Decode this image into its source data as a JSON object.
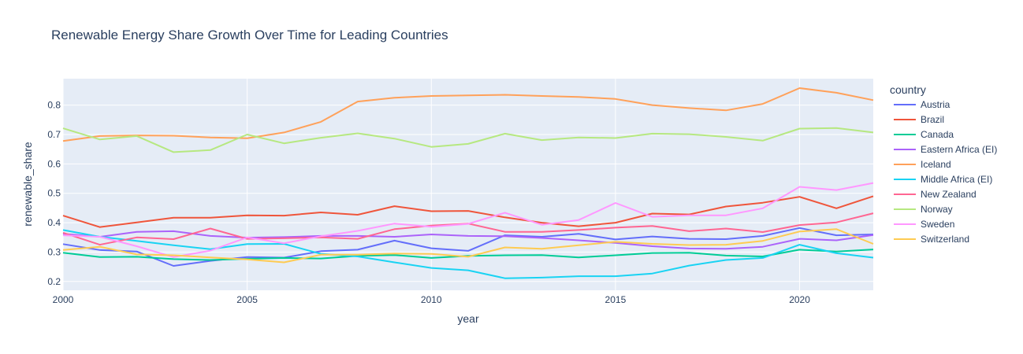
{
  "chart_data": {
    "type": "line",
    "title": "Renewable Energy Share Growth Over Time for Leading Countries",
    "xlabel": "year",
    "ylabel": "renewable_share",
    "legend_title": "country",
    "legend_position": "right",
    "grid": true,
    "xlim": [
      2000,
      2022
    ],
    "ylim": [
      0.17,
      0.89
    ],
    "x_ticks": [
      2000,
      2005,
      2010,
      2015,
      2020
    ],
    "y_ticks": [
      0.2,
      0.3,
      0.4,
      0.5,
      0.6,
      0.7,
      0.8
    ],
    "x": [
      2000,
      2001,
      2002,
      2003,
      2004,
      2005,
      2006,
      2007,
      2008,
      2009,
      2010,
      2011,
      2012,
      2013,
      2014,
      2015,
      2016,
      2017,
      2018,
      2019,
      2020,
      2021,
      2022
    ],
    "series": [
      {
        "name": "Austria",
        "color": "#636efa",
        "values": [
          0.327,
          0.307,
          0.302,
          0.253,
          0.27,
          0.283,
          0.281,
          0.303,
          0.308,
          0.339,
          0.313,
          0.304,
          0.357,
          0.352,
          0.362,
          0.343,
          0.353,
          0.345,
          0.344,
          0.355,
          0.382,
          0.357,
          0.36
        ]
      },
      {
        "name": "Brazil",
        "color": "#ef553b",
        "values": [
          0.424,
          0.385,
          0.401,
          0.417,
          0.417,
          0.425,
          0.424,
          0.435,
          0.427,
          0.456,
          0.439,
          0.44,
          0.418,
          0.4,
          0.388,
          0.4,
          0.431,
          0.428,
          0.455,
          0.468,
          0.488,
          0.449,
          0.49
        ]
      },
      {
        "name": "Canada",
        "color": "#00cc96",
        "values": [
          0.298,
          0.283,
          0.284,
          0.276,
          0.273,
          0.277,
          0.28,
          0.278,
          0.287,
          0.29,
          0.28,
          0.287,
          0.289,
          0.29,
          0.282,
          0.289,
          0.297,
          0.298,
          0.288,
          0.285,
          0.308,
          0.302,
          0.309
        ]
      },
      {
        "name": "Eastern Africa (EI)",
        "color": "#ab63fa",
        "values": [
          0.362,
          0.352,
          0.369,
          0.371,
          0.355,
          0.349,
          0.351,
          0.355,
          0.355,
          0.352,
          0.36,
          0.355,
          0.354,
          0.348,
          0.34,
          0.331,
          0.32,
          0.312,
          0.311,
          0.318,
          0.345,
          0.34,
          0.358
        ]
      },
      {
        "name": "Iceland",
        "color": "#ffa15a",
        "values": [
          0.678,
          0.695,
          0.697,
          0.696,
          0.69,
          0.687,
          0.707,
          0.743,
          0.812,
          0.825,
          0.831,
          0.833,
          0.835,
          0.831,
          0.828,
          0.821,
          0.8,
          0.79,
          0.782,
          0.804,
          0.858,
          0.842,
          0.817
        ]
      },
      {
        "name": "Middle Africa (EI)",
        "color": "#19d3f3",
        "values": [
          0.375,
          0.352,
          0.338,
          0.323,
          0.31,
          0.327,
          0.328,
          0.294,
          0.285,
          0.265,
          0.246,
          0.238,
          0.211,
          0.213,
          0.218,
          0.218,
          0.227,
          0.254,
          0.273,
          0.28,
          0.325,
          0.296,
          0.281
        ]
      },
      {
        "name": "New Zealand",
        "color": "#ff6692",
        "values": [
          0.366,
          0.325,
          0.35,
          0.344,
          0.38,
          0.345,
          0.347,
          0.35,
          0.345,
          0.378,
          0.39,
          0.397,
          0.369,
          0.369,
          0.375,
          0.383,
          0.389,
          0.371,
          0.38,
          0.368,
          0.392,
          0.401,
          0.432
        ]
      },
      {
        "name": "Norway",
        "color": "#b6e880",
        "values": [
          0.721,
          0.683,
          0.695,
          0.64,
          0.647,
          0.7,
          0.67,
          0.689,
          0.704,
          0.686,
          0.658,
          0.668,
          0.703,
          0.681,
          0.69,
          0.688,
          0.703,
          0.701,
          0.692,
          0.679,
          0.72,
          0.722,
          0.707
        ]
      },
      {
        "name": "Sweden",
        "color": "#ff97ff",
        "values": [
          0.357,
          0.352,
          0.32,
          0.283,
          0.305,
          0.35,
          0.33,
          0.354,
          0.372,
          0.397,
          0.386,
          0.396,
          0.434,
          0.393,
          0.409,
          0.467,
          0.42,
          0.425,
          0.425,
          0.449,
          0.522,
          0.511,
          0.535
        ]
      },
      {
        "name": "Switzerland",
        "color": "#fecb52",
        "values": [
          0.307,
          0.318,
          0.292,
          0.289,
          0.282,
          0.275,
          0.265,
          0.291,
          0.291,
          0.295,
          0.294,
          0.284,
          0.316,
          0.311,
          0.323,
          0.335,
          0.328,
          0.324,
          0.325,
          0.338,
          0.37,
          0.378,
          0.328
        ]
      }
    ]
  }
}
